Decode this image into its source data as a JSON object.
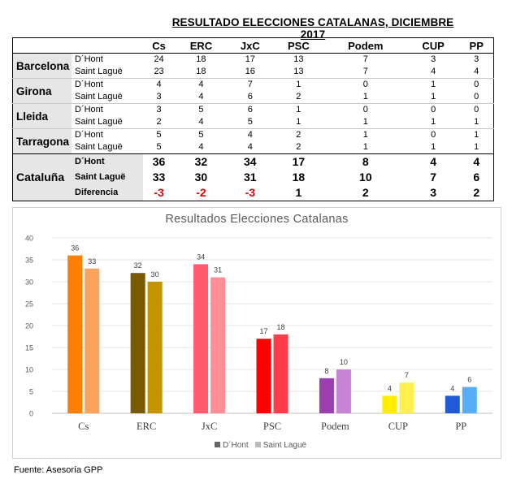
{
  "table": {
    "title": "RESULTADO ELECCIONES CATALANAS, DICIEMBRE 2017",
    "parties": [
      "Cs",
      "ERC",
      "JxC",
      "PSC",
      "Podem",
      "CUP",
      "PP"
    ],
    "provinces": [
      {
        "name": "Barcelona",
        "rows": [
          {
            "method": "D´Hont",
            "values": [
              24,
              18,
              17,
              13,
              7,
              3,
              3
            ]
          },
          {
            "method": "Saint Laguë",
            "values": [
              23,
              18,
              16,
              13,
              7,
              4,
              4
            ]
          }
        ]
      },
      {
        "name": "Girona",
        "rows": [
          {
            "method": "D´Hont",
            "values": [
              4,
              4,
              7,
              1,
              0,
              1,
              0
            ]
          },
          {
            "method": "Saint Laguë",
            "values": [
              3,
              4,
              6,
              2,
              1,
              1,
              0
            ]
          }
        ]
      },
      {
        "name": "Lleida",
        "rows": [
          {
            "method": "D´Hont",
            "values": [
              3,
              5,
              6,
              1,
              0,
              0,
              0
            ]
          },
          {
            "method": "Saint Laguë",
            "values": [
              2,
              4,
              5,
              1,
              1,
              1,
              1
            ]
          }
        ]
      },
      {
        "name": "Tarragona",
        "rows": [
          {
            "method": "D´Hont",
            "values": [
              5,
              5,
              4,
              2,
              1,
              0,
              1
            ]
          },
          {
            "method": "Saint Laguë",
            "values": [
              5,
              4,
              4,
              2,
              1,
              1,
              1
            ]
          }
        ]
      }
    ],
    "total": {
      "name": "Cataluña",
      "rows": [
        {
          "method": "D´Hont",
          "values": [
            36,
            32,
            34,
            17,
            8,
            4,
            4
          ]
        },
        {
          "method": "Saint Laguë",
          "values": [
            33,
            30,
            31,
            18,
            10,
            7,
            6
          ]
        },
        {
          "method": "Diferencia",
          "values": [
            "-3",
            "-2",
            "-3",
            "1",
            "2",
            "3",
            "2"
          ]
        }
      ]
    }
  },
  "chart_data": {
    "type": "bar",
    "title": "Resultados Elecciones Catalanas",
    "categories": [
      "Cs",
      "ERC",
      "JxC",
      "PSC",
      "Podem",
      "CUP",
      "PP"
    ],
    "series": [
      {
        "name": "D´Hont",
        "values": [
          36,
          32,
          34,
          17,
          8,
          4,
          4
        ]
      },
      {
        "name": "Saint Laguë",
        "values": [
          33,
          30,
          31,
          18,
          10,
          7,
          6
        ]
      }
    ],
    "colors": [
      [
        "#ff7f00",
        "#7a5a00",
        "#ff5a6e",
        "#ff0000",
        "#9b3fb0",
        "#ffee00",
        "#1f5bd6"
      ],
      [
        "#f9a35c",
        "#c49400",
        "#ff8e98",
        "#ff3b4a",
        "#c983d6",
        "#fff04f",
        "#58aef5"
      ]
    ],
    "ylim": [
      0,
      40
    ],
    "yticks": [
      0,
      5,
      10,
      15,
      20,
      25,
      30,
      35,
      40
    ],
    "grid": true,
    "legend_position": "bottom",
    "legend_swatch_colors": [
      "#666666",
      "#bbbbbb"
    ]
  },
  "source": "Fuente: Asesoría GPP"
}
